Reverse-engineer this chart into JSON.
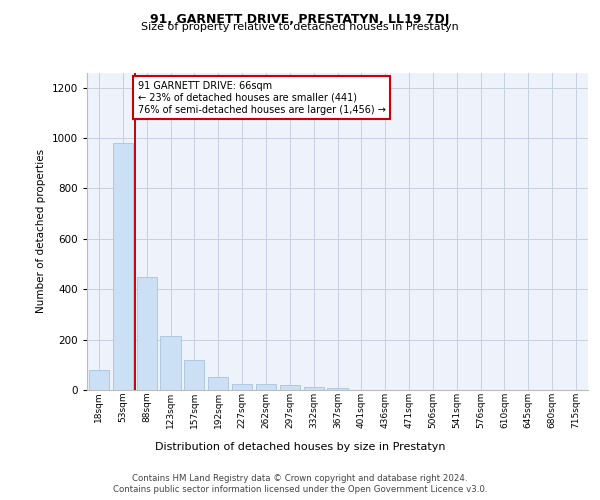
{
  "title": "91, GARNETT DRIVE, PRESTATYN, LL19 7DJ",
  "subtitle": "Size of property relative to detached houses in Prestatyn",
  "xlabel": "Distribution of detached houses by size in Prestatyn",
  "ylabel": "Number of detached properties",
  "bar_color": "#cce0f5",
  "bar_edgecolor": "#a8c4e0",
  "categories": [
    "18sqm",
    "53sqm",
    "88sqm",
    "123sqm",
    "157sqm",
    "192sqm",
    "227sqm",
    "262sqm",
    "297sqm",
    "332sqm",
    "367sqm",
    "401sqm",
    "436sqm",
    "471sqm",
    "506sqm",
    "541sqm",
    "576sqm",
    "610sqm",
    "645sqm",
    "680sqm",
    "715sqm"
  ],
  "values": [
    80,
    980,
    450,
    215,
    120,
    50,
    25,
    22,
    20,
    12,
    8,
    0,
    0,
    0,
    0,
    0,
    0,
    0,
    0,
    0,
    0
  ],
  "ylim": [
    0,
    1260
  ],
  "yticks": [
    0,
    200,
    400,
    600,
    800,
    1000,
    1200
  ],
  "property_line_x": 1.5,
  "annotation_text": "91 GARNETT DRIVE: 66sqm\n← 23% of detached houses are smaller (441)\n76% of semi-detached houses are larger (1,456) →",
  "annotation_box_color": "#ffffff",
  "annotation_box_edgecolor": "#cc0000",
  "red_line_color": "#cc0000",
  "footer_line1": "Contains HM Land Registry data © Crown copyright and database right 2024.",
  "footer_line2": "Contains public sector information licensed under the Open Government Licence v3.0.",
  "bg_color": "#eef2fa",
  "grid_color": "#c8d0e0"
}
